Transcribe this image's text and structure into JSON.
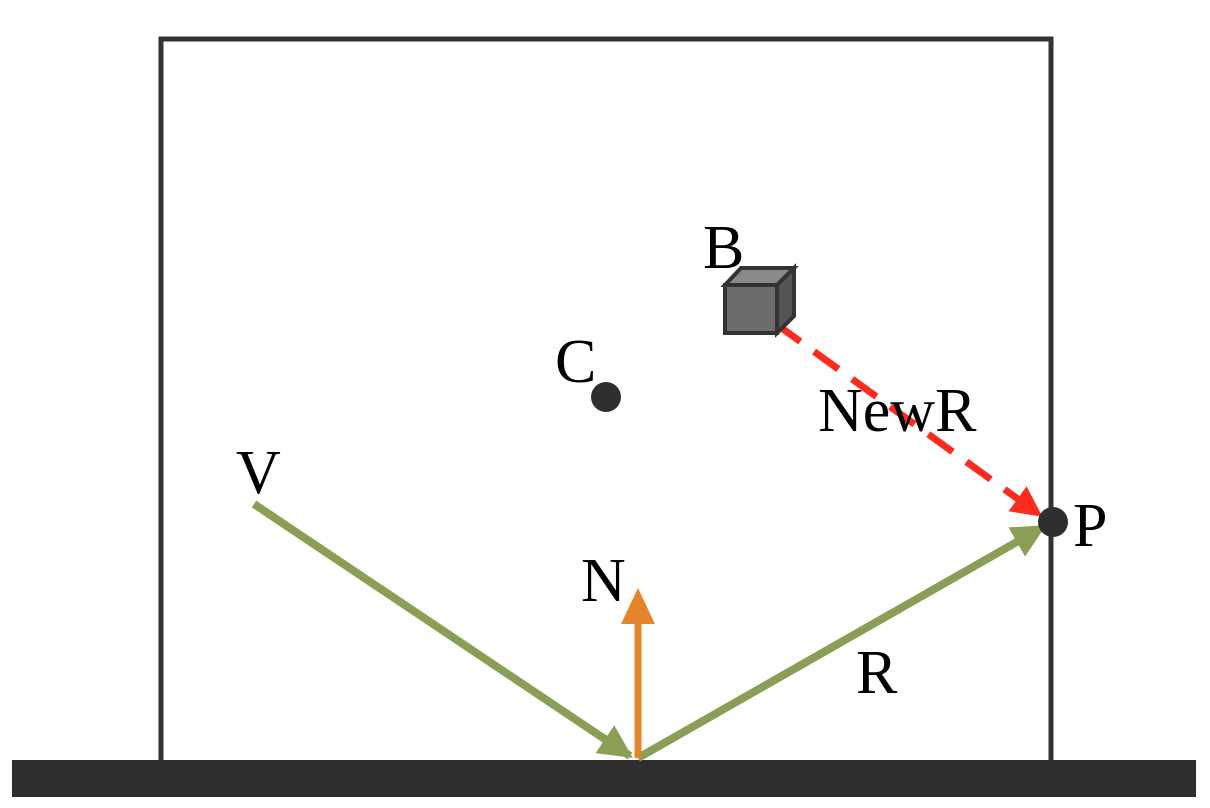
{
  "diagram": {
    "labels": {
      "b": "B",
      "c": "C",
      "v": "V",
      "n": "N",
      "r": "R",
      "p": "P",
      "new_r": "NewR"
    },
    "colors": {
      "outline": "#333333",
      "floor": "#2e2e2e",
      "ray": "#8a9e55",
      "normal": "#e5842a",
      "new_ray": "#ff2a1e",
      "box_front": "#6d6d6d",
      "box_top": "#8a8a8a",
      "box_side": "#555555",
      "point": "#2f2f2f"
    }
  }
}
